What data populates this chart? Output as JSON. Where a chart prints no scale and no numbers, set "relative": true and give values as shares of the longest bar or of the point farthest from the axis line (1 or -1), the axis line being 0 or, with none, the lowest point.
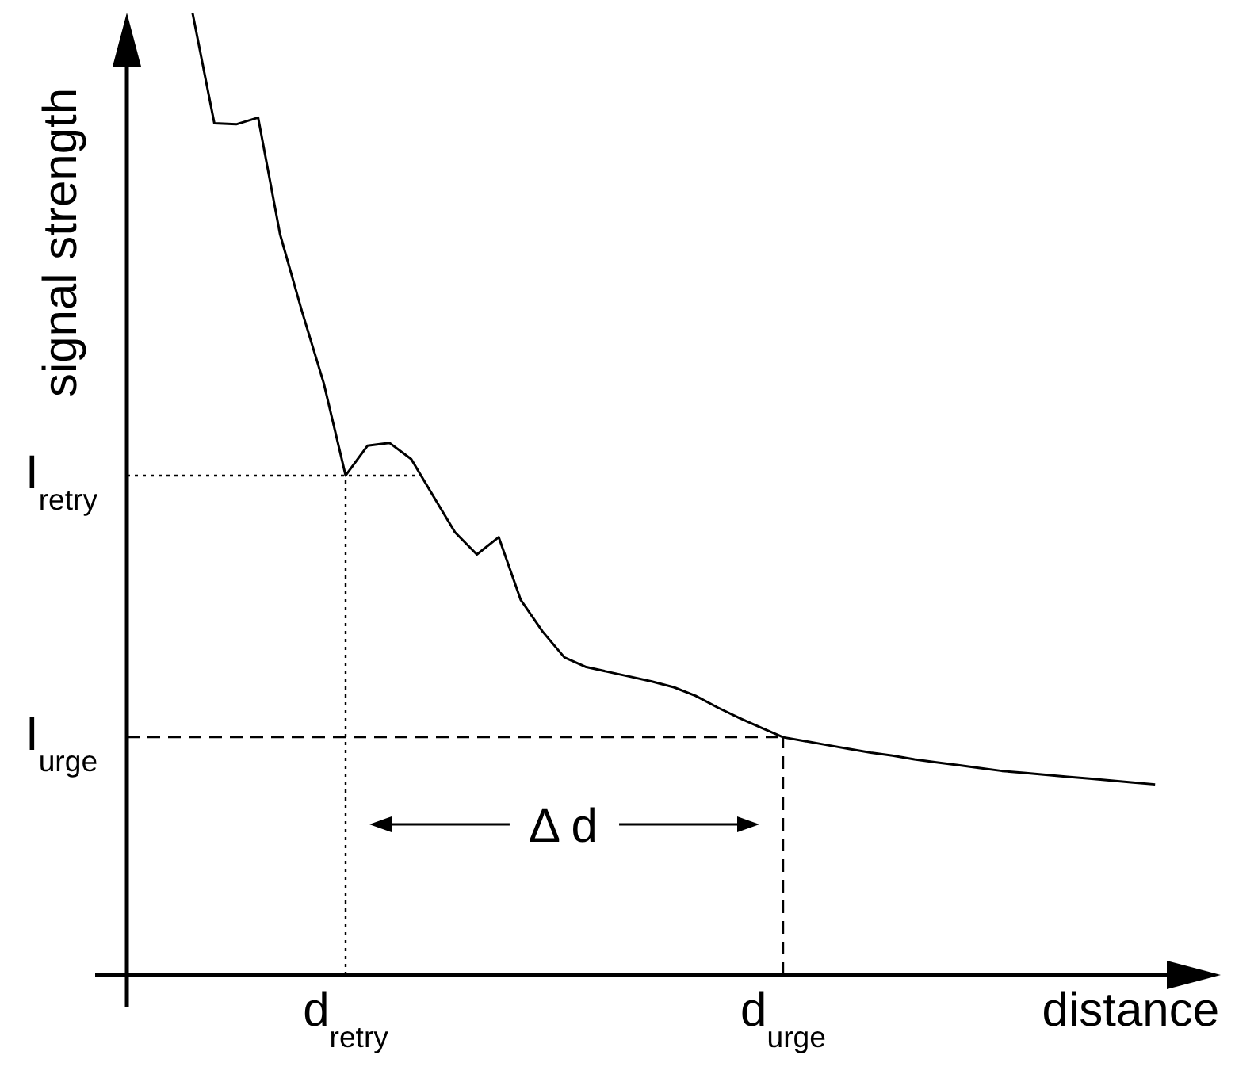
{
  "chart_data": {
    "type": "line",
    "relative": true,
    "xlabel": "distance",
    "ylabel": "signal strength",
    "legend": false,
    "grid": false,
    "marker": "none",
    "line_style": "solid",
    "categories": [
      null,
      null,
      null,
      null,
      null,
      null,
      null,
      null,
      null,
      null,
      "d$_{retry}$",
      null,
      null,
      null,
      null,
      null,
      null,
      null,
      null,
      null,
      null,
      null,
      null,
      null,
      null,
      null,
      null,
      null,
      null,
      null,
      "d$_{urge}$",
      null,
      null,
      null,
      null,
      null,
      null,
      null,
      null,
      null,
      null,
      null,
      null,
      null,
      null,
      null,
      null,
      null,
      null,
      null,
      null
    ],
    "series": [
      {
        "color": "#000000",
        "values": [
          null,
          null,
          null,
          1.0,
          0.885,
          0.884,
          0.891,
          0.77,
          0.69,
          0.615,
          0.519,
          0.55,
          0.553,
          0.536,
          0.498,
          0.46,
          0.437,
          0.455,
          0.39,
          0.357,
          0.33,
          0.32,
          0.315,
          0.31,
          0.305,
          0.299,
          0.29,
          0.278,
          0.267,
          0.257,
          0.247,
          0.243,
          0.239,
          0.235,
          0.231,
          0.228,
          0.224,
          0.221,
          0.218,
          0.215,
          0.212,
          0.21,
          0.208,
          0.206,
          0.204,
          0.202,
          0.2,
          0.198,
          null,
          null,
          null
        ]
      }
    ],
    "ref_lines": [
      {
        "axis": "y",
        "value": 0.519,
        "label": "I$_{retry}$",
        "line_style": "dotted"
      },
      {
        "axis": "y",
        "value": 0.247,
        "label": "I$_{urge}$",
        "line_style": "dashed"
      },
      {
        "axis": "x",
        "value": "d$_{retry}$",
        "line_style": "dotted"
      },
      {
        "axis": "x",
        "value": "d$_{urge}$",
        "line_style": "dashed"
      }
    ],
    "annotations": [
      "Δ d"
    ]
  }
}
